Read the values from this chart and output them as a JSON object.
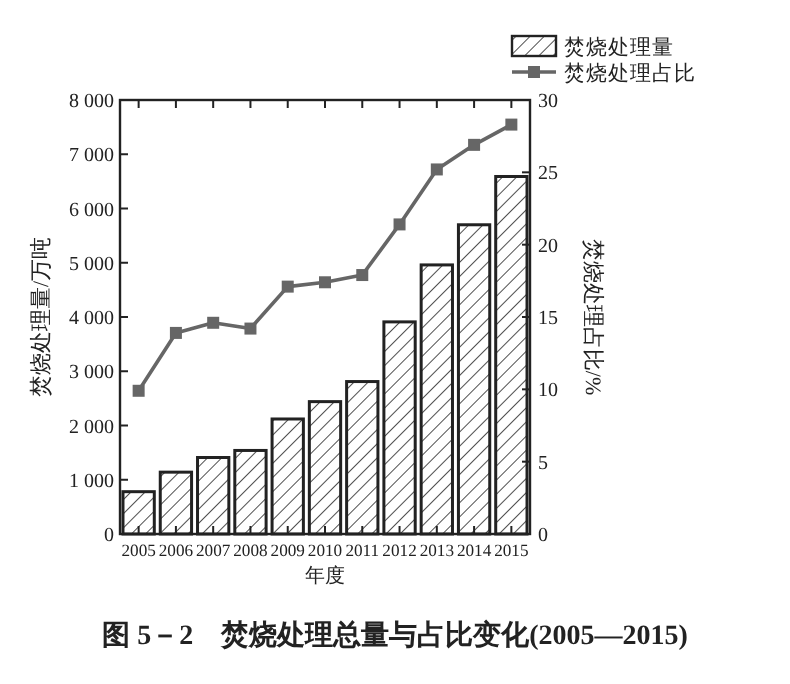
{
  "chart_data": {
    "type": "bar",
    "title": "图 5－2　焚烧处理总量与占比变化(2005—2015)",
    "xlabel": "年度",
    "ylabel": "焚烧处理量/万吨",
    "y2label": "焚烧处理占比/%",
    "categories": [
      "2005",
      "2006",
      "2007",
      "2008",
      "2009",
      "2010",
      "2011",
      "2012",
      "2013",
      "2014",
      "2015"
    ],
    "series": [
      {
        "name": "焚烧处理量",
        "color": "#222222",
        "values": [
          780,
          1140,
          1410,
          1540,
          2120,
          2440,
          2810,
          3910,
          4960,
          5700,
          6590
        ]
      },
      {
        "name": "焚烧处理占比",
        "type": "line",
        "axis": "y2",
        "color": "#666666",
        "marker": "square",
        "values": [
          9.9,
          13.9,
          14.6,
          14.2,
          17.1,
          17.4,
          17.9,
          21.4,
          25.2,
          26.9,
          28.3
        ]
      }
    ],
    "ylim": [
      0,
      8000
    ],
    "yticks": [
      0,
      {
        "value": 1000,
        "label": "1 000"
      },
      {
        "value": 2000,
        "label": "2 000"
      },
      {
        "value": 3000,
        "label": "3 000"
      },
      {
        "value": 4000,
        "label": "4 000"
      },
      {
        "value": 5000,
        "label": "5 000"
      },
      {
        "value": 6000,
        "label": "6 000"
      },
      {
        "value": 7000,
        "label": "7 000"
      },
      {
        "value": 8000,
        "label": "8 000"
      }
    ],
    "y2lim": [
      0,
      30
    ],
    "y2ticks": [
      0,
      5,
      10,
      15,
      20,
      25,
      30
    ],
    "legend": "top right",
    "grid": false
  }
}
